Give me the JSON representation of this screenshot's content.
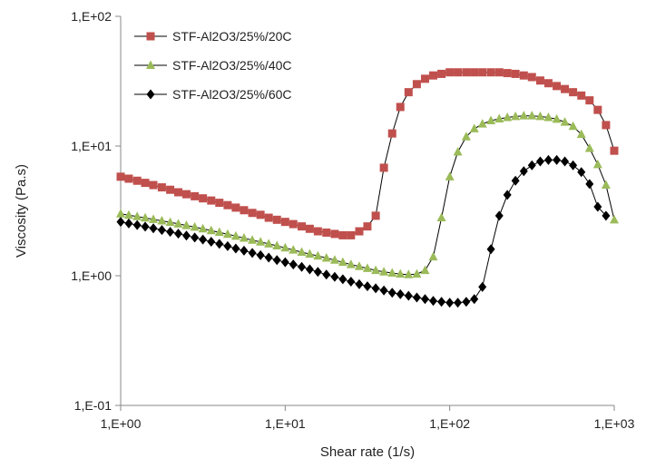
{
  "chart_data": {
    "type": "line",
    "title": "",
    "xlabel": "Shear rate (1/s)",
    "ylabel": "Viscosity (Pa.s)",
    "x_scale": "log",
    "y_scale": "log",
    "xlim": [
      1,
      1000
    ],
    "ylim": [
      0.1,
      100
    ],
    "x_ticks": [
      {
        "value": 1,
        "label": "1,E+00"
      },
      {
        "value": 10,
        "label": "1,E+01"
      },
      {
        "value": 100,
        "label": "1,E+02"
      },
      {
        "value": 1000,
        "label": "1,E+03"
      }
    ],
    "y_ticks": [
      {
        "value": 0.1,
        "label": "1,E-01"
      },
      {
        "value": 1,
        "label": "1,E+00"
      },
      {
        "value": 10,
        "label": "1,E+01"
      },
      {
        "value": 100,
        "label": "1,E+02"
      }
    ],
    "grid": false,
    "legend_position": "top-left",
    "series": [
      {
        "name": "STF-Al2O3/25%/20C",
        "color": "#c0504d",
        "marker": "square",
        "x": [
          1,
          1.12,
          1.26,
          1.41,
          1.58,
          1.78,
          2,
          2.24,
          2.51,
          2.82,
          3.16,
          3.55,
          3.98,
          4.47,
          5.01,
          5.62,
          6.31,
          7.08,
          7.94,
          8.91,
          10,
          11.2,
          12.6,
          14.1,
          15.8,
          17.8,
          20,
          22.4,
          25.1,
          28.2,
          31.6,
          35.5,
          39.8,
          44.7,
          50.1,
          56.2,
          63.1,
          70.8,
          79.4,
          89.1,
          100,
          112,
          126,
          141,
          158,
          178,
          200,
          224,
          251,
          282,
          316,
          355,
          398,
          447,
          501,
          562,
          631,
          708,
          794,
          891,
          1000
        ],
        "y": [
          5.8,
          5.6,
          5.4,
          5.2,
          5.0,
          4.8,
          4.6,
          4.4,
          4.25,
          4.1,
          3.95,
          3.8,
          3.65,
          3.5,
          3.35,
          3.2,
          3.05,
          2.95,
          2.8,
          2.7,
          2.6,
          2.5,
          2.4,
          2.3,
          2.2,
          2.15,
          2.1,
          2.05,
          2.05,
          2.2,
          2.4,
          2.9,
          6.8,
          12.5,
          20,
          26,
          30,
          33,
          35,
          36,
          37,
          37,
          37,
          37,
          37,
          37,
          37,
          36.5,
          36,
          35,
          34,
          32,
          30.5,
          29,
          27.5,
          26,
          24.5,
          22.5,
          19,
          14.5,
          9.2
        ]
      },
      {
        "name": "STF-Al2O3/25%/40C",
        "color": "#9bbb59",
        "marker": "triangle",
        "x": [
          1,
          1.12,
          1.26,
          1.41,
          1.58,
          1.78,
          2,
          2.24,
          2.51,
          2.82,
          3.16,
          3.55,
          3.98,
          4.47,
          5.01,
          5.62,
          6.31,
          7.08,
          7.94,
          8.91,
          10,
          11.2,
          12.6,
          14.1,
          15.8,
          17.8,
          20,
          22.4,
          25.1,
          28.2,
          31.6,
          35.5,
          39.8,
          44.7,
          50.1,
          56.2,
          63.1,
          70.8,
          79.4,
          89.1,
          100,
          112,
          126,
          141,
          158,
          178,
          200,
          224,
          251,
          282,
          316,
          355,
          398,
          447,
          501,
          562,
          631,
          708,
          794,
          891,
          1000
        ],
        "y": [
          3.0,
          2.93,
          2.86,
          2.79,
          2.72,
          2.65,
          2.58,
          2.51,
          2.44,
          2.37,
          2.3,
          2.23,
          2.16,
          2.09,
          2.02,
          1.95,
          1.88,
          1.82,
          1.76,
          1.7,
          1.64,
          1.58,
          1.52,
          1.47,
          1.42,
          1.37,
          1.32,
          1.27,
          1.22,
          1.18,
          1.14,
          1.1,
          1.07,
          1.05,
          1.03,
          1.02,
          1.03,
          1.1,
          1.4,
          2.8,
          5.8,
          9.0,
          11.8,
          13.6,
          14.8,
          15.7,
          16.2,
          16.6,
          16.9,
          17.1,
          17.1,
          16.9,
          16.6,
          16.1,
          15.3,
          14.2,
          12.3,
          9.6,
          7.2,
          5.0,
          2.7
        ]
      },
      {
        "name": "STF-Al2O3/25%/60C",
        "color": "#000000",
        "marker": "diamond",
        "x": [
          1,
          1.12,
          1.26,
          1.41,
          1.58,
          1.78,
          2,
          2.24,
          2.51,
          2.82,
          3.16,
          3.55,
          3.98,
          4.47,
          5.01,
          5.62,
          6.31,
          7.08,
          7.94,
          8.91,
          10,
          11.2,
          12.6,
          14.1,
          15.8,
          17.8,
          20,
          22.4,
          25.1,
          28.2,
          31.6,
          35.5,
          39.8,
          44.7,
          50.1,
          56.2,
          63.1,
          70.8,
          79.4,
          89.1,
          100,
          112,
          126,
          141,
          158,
          178,
          200,
          224,
          251,
          282,
          316,
          355,
          398,
          447,
          501,
          562,
          631,
          708,
          794,
          891
        ],
        "y": [
          2.6,
          2.53,
          2.46,
          2.39,
          2.32,
          2.25,
          2.18,
          2.11,
          2.04,
          1.97,
          1.9,
          1.83,
          1.76,
          1.69,
          1.62,
          1.56,
          1.5,
          1.44,
          1.38,
          1.32,
          1.27,
          1.22,
          1.17,
          1.12,
          1.07,
          1.02,
          0.98,
          0.94,
          0.9,
          0.86,
          0.83,
          0.8,
          0.77,
          0.74,
          0.72,
          0.7,
          0.68,
          0.66,
          0.64,
          0.63,
          0.62,
          0.62,
          0.63,
          0.66,
          0.82,
          1.6,
          2.9,
          4.2,
          5.4,
          6.4,
          7.1,
          7.6,
          7.8,
          7.8,
          7.6,
          7.1,
          6.3,
          5.1,
          3.4,
          2.9
        ]
      }
    ]
  }
}
